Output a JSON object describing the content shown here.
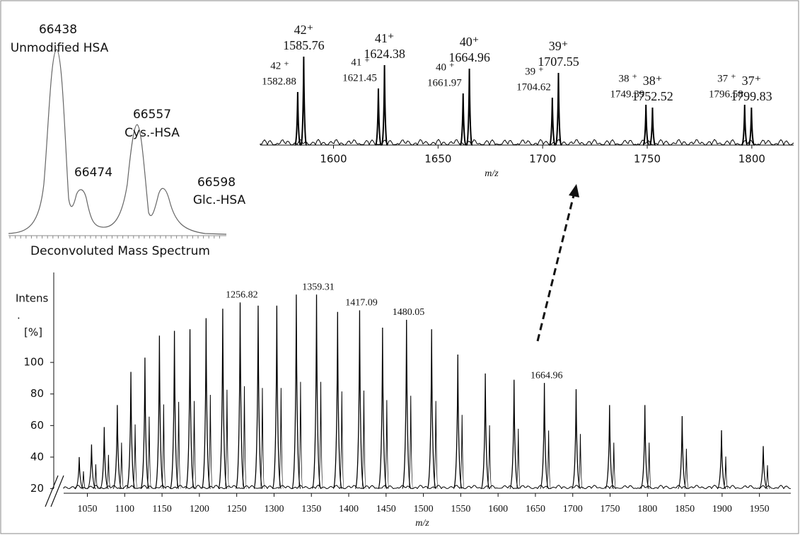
{
  "deconvoluted": {
    "caption": "Deconvoluted Mass Spectrum",
    "peaks": [
      {
        "mass": 66438,
        "name": "Unmodified HSA"
      },
      {
        "mass": 66474
      },
      {
        "mass": 66557,
        "name": "Cys.-HSA"
      },
      {
        "mass": 66598,
        "name": "Glc.-HSA"
      }
    ]
  },
  "chart_data": [
    {
      "type": "spectrum",
      "x_label": "m/z",
      "xlim": [
        1565,
        1820
      ],
      "xticks": [
        1600,
        1650,
        1700,
        1750,
        1800
      ],
      "ylim": [
        0,
        130
      ],
      "x": [
        1582.88,
        1585.76,
        1621.45,
        1624.38,
        1661.97,
        1664.96,
        1704.62,
        1707.55,
        1749.39,
        1752.52,
        1796.58,
        1799.83
      ],
      "values": [
        75,
        125,
        80,
        113,
        73,
        108,
        67,
        102,
        57,
        53,
        57,
        53
      ],
      "charges": [
        "42 ⁺",
        "42⁺",
        "41 ⁺",
        "41⁺",
        "40 ⁺",
        "40⁺",
        "39 ⁺",
        "39⁺",
        "38 ⁺",
        "38⁺",
        "37 ⁺",
        "37⁺"
      ],
      "color": "#000000"
    },
    {
      "type": "spectrum",
      "x_label": "m/z",
      "y_label": [
        "Intens",
        ".",
        "[%]"
      ],
      "xlim": [
        1005,
        1992
      ],
      "xticks": [
        1050,
        1100,
        1150,
        1200,
        1250,
        1300,
        1350,
        1400,
        1450,
        1500,
        1550,
        1600,
        1650,
        1700,
        1750,
        1800,
        1850,
        1900,
        1950
      ],
      "ylim": [
        18,
        157
      ],
      "yticks": [
        20,
        40,
        60,
        80,
        100
      ],
      "x": [
        1039.1,
        1055.6,
        1072.6,
        1090.1,
        1108.3,
        1127.1,
        1146.5,
        1166.6,
        1187.4,
        1209.0,
        1231.3,
        1254.6,
        1278.7,
        1303.7,
        1329.8,
        1356.9,
        1385.1,
        1414.6,
        1445.3,
        1477.4,
        1511.0,
        1546.1,
        1582.9,
        1621.4,
        1662.0,
        1704.5,
        1749.3,
        1796.6,
        1846.5,
        1899.2,
        1955.1
      ],
      "values": [
        40,
        48,
        59,
        73,
        94,
        103,
        117,
        120,
        121,
        128,
        134,
        138,
        136,
        136,
        143,
        143,
        132,
        133,
        122,
        127,
        121,
        105,
        93,
        89,
        87,
        83,
        73,
        73,
        66,
        57,
        47
      ],
      "peak_labels": [
        1256.82,
        1359.31,
        1417.09,
        1480.05,
        1664.96
      ],
      "color": "#000000"
    }
  ]
}
